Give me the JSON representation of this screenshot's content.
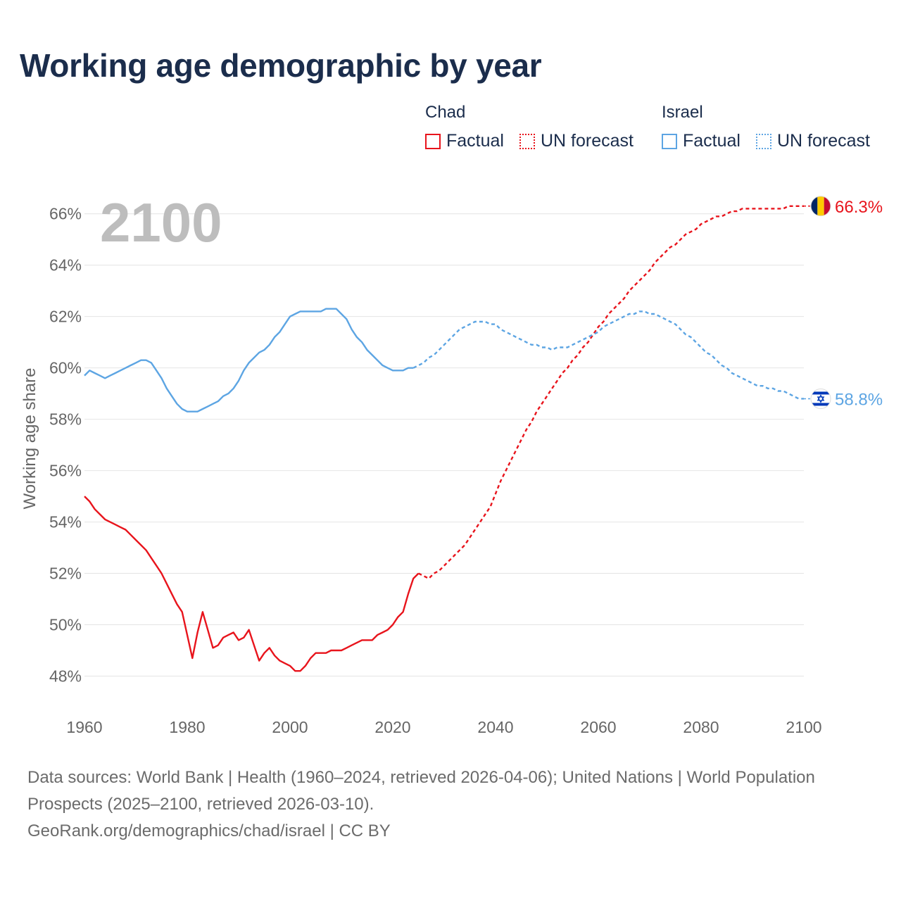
{
  "colors": {
    "chad": "#e8141c",
    "israel": "#5da5e3",
    "title": "#1b2d4c",
    "grid": "#e4e4e4",
    "muted": "#666666"
  },
  "legend": {
    "groups": [
      {
        "name": "Chad",
        "factual": "Factual",
        "forecast": "UN forecast"
      },
      {
        "name": "Israel",
        "factual": "Factual",
        "forecast": "UN forecast"
      }
    ]
  },
  "footer": {
    "sources": "Data sources: World Bank | Health (1960–2024, retrieved 2026-04-06); United Nations | World Population Prospects (2025–2100, retrieved 2026-03-10).",
    "credit": "GeoRank.org/demographics/chad/israel | CC BY"
  },
  "chart_data": {
    "type": "line",
    "title": "Working age demographic by year",
    "current_year": "2100",
    "xlabel": "",
    "ylabel": "Working age share",
    "xlim": [
      1960,
      2100
    ],
    "ylim": [
      47,
      67.5
    ],
    "x_ticks": [
      1960,
      1980,
      2000,
      2020,
      2040,
      2060,
      2080,
      2100
    ],
    "y_ticks": [
      48,
      50,
      52,
      54,
      56,
      58,
      60,
      62,
      64,
      66
    ],
    "y_tick_labels": [
      "48%",
      "50%",
      "52%",
      "54%",
      "56%",
      "58%",
      "60%",
      "62%",
      "64%",
      "66%"
    ],
    "series": [
      {
        "name": "Chad",
        "key": "chad",
        "end_label": "66.3%",
        "factual": [
          [
            1960,
            55.0
          ],
          [
            1961,
            54.8
          ],
          [
            1962,
            54.5
          ],
          [
            1963,
            54.3
          ],
          [
            1964,
            54.1
          ],
          [
            1965,
            54.0
          ],
          [
            1966,
            53.9
          ],
          [
            1967,
            53.8
          ],
          [
            1968,
            53.7
          ],
          [
            1969,
            53.5
          ],
          [
            1970,
            53.3
          ],
          [
            1971,
            53.1
          ],
          [
            1972,
            52.9
          ],
          [
            1973,
            52.6
          ],
          [
            1974,
            52.3
          ],
          [
            1975,
            52.0
          ],
          [
            1976,
            51.6
          ],
          [
            1977,
            51.2
          ],
          [
            1978,
            50.8
          ],
          [
            1979,
            50.5
          ],
          [
            1980,
            49.6
          ],
          [
            1981,
            48.7
          ],
          [
            1982,
            49.7
          ],
          [
            1983,
            50.5
          ],
          [
            1984,
            49.8
          ],
          [
            1985,
            49.1
          ],
          [
            1986,
            49.2
          ],
          [
            1987,
            49.5
          ],
          [
            1988,
            49.6
          ],
          [
            1989,
            49.7
          ],
          [
            1990,
            49.4
          ],
          [
            1991,
            49.5
          ],
          [
            1992,
            49.8
          ],
          [
            1993,
            49.2
          ],
          [
            1994,
            48.6
          ],
          [
            1995,
            48.9
          ],
          [
            1996,
            49.1
          ],
          [
            1997,
            48.8
          ],
          [
            1998,
            48.6
          ],
          [
            1999,
            48.5
          ],
          [
            2000,
            48.4
          ],
          [
            2001,
            48.2
          ],
          [
            2002,
            48.2
          ],
          [
            2003,
            48.4
          ],
          [
            2004,
            48.7
          ],
          [
            2005,
            48.9
          ],
          [
            2006,
            48.9
          ],
          [
            2007,
            48.9
          ],
          [
            2008,
            49.0
          ],
          [
            2009,
            49.0
          ],
          [
            2010,
            49.0
          ],
          [
            2011,
            49.1
          ],
          [
            2012,
            49.2
          ],
          [
            2013,
            49.3
          ],
          [
            2014,
            49.4
          ],
          [
            2015,
            49.4
          ],
          [
            2016,
            49.4
          ],
          [
            2017,
            49.6
          ],
          [
            2018,
            49.7
          ],
          [
            2019,
            49.8
          ],
          [
            2020,
            50.0
          ],
          [
            2021,
            50.3
          ],
          [
            2022,
            50.5
          ],
          [
            2023,
            51.2
          ],
          [
            2024,
            51.8
          ],
          [
            2025,
            52.0
          ]
        ],
        "forecast": [
          [
            2025,
            52.0
          ],
          [
            2026,
            51.9
          ],
          [
            2027,
            51.8
          ],
          [
            2028,
            52.0
          ],
          [
            2029,
            52.1
          ],
          [
            2030,
            52.3
          ],
          [
            2031,
            52.5
          ],
          [
            2032,
            52.7
          ],
          [
            2033,
            52.9
          ],
          [
            2034,
            53.1
          ],
          [
            2035,
            53.4
          ],
          [
            2036,
            53.7
          ],
          [
            2037,
            54.0
          ],
          [
            2038,
            54.3
          ],
          [
            2039,
            54.6
          ],
          [
            2040,
            55.1
          ],
          [
            2041,
            55.6
          ],
          [
            2042,
            56.0
          ],
          [
            2043,
            56.4
          ],
          [
            2044,
            56.8
          ],
          [
            2045,
            57.2
          ],
          [
            2046,
            57.6
          ],
          [
            2047,
            57.9
          ],
          [
            2048,
            58.3
          ],
          [
            2049,
            58.6
          ],
          [
            2050,
            58.9
          ],
          [
            2051,
            59.2
          ],
          [
            2052,
            59.5
          ],
          [
            2053,
            59.8
          ],
          [
            2054,
            60.0
          ],
          [
            2055,
            60.3
          ],
          [
            2056,
            60.5
          ],
          [
            2057,
            60.8
          ],
          [
            2058,
            61.0
          ],
          [
            2059,
            61.3
          ],
          [
            2060,
            61.6
          ],
          [
            2061,
            61.8
          ],
          [
            2062,
            62.1
          ],
          [
            2063,
            62.3
          ],
          [
            2064,
            62.5
          ],
          [
            2065,
            62.7
          ],
          [
            2066,
            63.0
          ],
          [
            2067,
            63.2
          ],
          [
            2068,
            63.4
          ],
          [
            2069,
            63.6
          ],
          [
            2070,
            63.8
          ],
          [
            2071,
            64.1
          ],
          [
            2072,
            64.3
          ],
          [
            2073,
            64.5
          ],
          [
            2074,
            64.7
          ],
          [
            2075,
            64.8
          ],
          [
            2076,
            65.0
          ],
          [
            2077,
            65.2
          ],
          [
            2078,
            65.3
          ],
          [
            2079,
            65.4
          ],
          [
            2080,
            65.6
          ],
          [
            2081,
            65.7
          ],
          [
            2082,
            65.8
          ],
          [
            2083,
            65.9
          ],
          [
            2084,
            65.9
          ],
          [
            2085,
            66.0
          ],
          [
            2086,
            66.1
          ],
          [
            2087,
            66.1
          ],
          [
            2088,
            66.2
          ],
          [
            2089,
            66.2
          ],
          [
            2090,
            66.2
          ],
          [
            2091,
            66.2
          ],
          [
            2092,
            66.2
          ],
          [
            2093,
            66.2
          ],
          [
            2094,
            66.2
          ],
          [
            2095,
            66.2
          ],
          [
            2096,
            66.2
          ],
          [
            2097,
            66.3
          ],
          [
            2098,
            66.3
          ],
          [
            2099,
            66.3
          ],
          [
            2100,
            66.3
          ]
        ]
      },
      {
        "name": "Israel",
        "key": "israel",
        "end_label": "58.8%",
        "factual": [
          [
            1960,
            59.7
          ],
          [
            1961,
            59.9
          ],
          [
            1962,
            59.8
          ],
          [
            1963,
            59.7
          ],
          [
            1964,
            59.6
          ],
          [
            1965,
            59.7
          ],
          [
            1966,
            59.8
          ],
          [
            1967,
            59.9
          ],
          [
            1968,
            60.0
          ],
          [
            1969,
            60.1
          ],
          [
            1970,
            60.2
          ],
          [
            1971,
            60.3
          ],
          [
            1972,
            60.3
          ],
          [
            1973,
            60.2
          ],
          [
            1974,
            59.9
          ],
          [
            1975,
            59.6
          ],
          [
            1976,
            59.2
          ],
          [
            1977,
            58.9
          ],
          [
            1978,
            58.6
          ],
          [
            1979,
            58.4
          ],
          [
            1980,
            58.3
          ],
          [
            1981,
            58.3
          ],
          [
            1982,
            58.3
          ],
          [
            1983,
            58.4
          ],
          [
            1984,
            58.5
          ],
          [
            1985,
            58.6
          ],
          [
            1986,
            58.7
          ],
          [
            1987,
            58.9
          ],
          [
            1988,
            59.0
          ],
          [
            1989,
            59.2
          ],
          [
            1990,
            59.5
          ],
          [
            1991,
            59.9
          ],
          [
            1992,
            60.2
          ],
          [
            1993,
            60.4
          ],
          [
            1994,
            60.6
          ],
          [
            1995,
            60.7
          ],
          [
            1996,
            60.9
          ],
          [
            1997,
            61.2
          ],
          [
            1998,
            61.4
          ],
          [
            1999,
            61.7
          ],
          [
            2000,
            62.0
          ],
          [
            2001,
            62.1
          ],
          [
            2002,
            62.2
          ],
          [
            2003,
            62.2
          ],
          [
            2004,
            62.2
          ],
          [
            2005,
            62.2
          ],
          [
            2006,
            62.2
          ],
          [
            2007,
            62.3
          ],
          [
            2008,
            62.3
          ],
          [
            2009,
            62.3
          ],
          [
            2010,
            62.1
          ],
          [
            2011,
            61.9
          ],
          [
            2012,
            61.5
          ],
          [
            2013,
            61.2
          ],
          [
            2014,
            61.0
          ],
          [
            2015,
            60.7
          ],
          [
            2016,
            60.5
          ],
          [
            2017,
            60.3
          ],
          [
            2018,
            60.1
          ],
          [
            2019,
            60.0
          ],
          [
            2020,
            59.9
          ],
          [
            2021,
            59.9
          ],
          [
            2022,
            59.9
          ],
          [
            2023,
            60.0
          ],
          [
            2024,
            60.0
          ]
        ],
        "forecast": [
          [
            2024,
            60.0
          ],
          [
            2025,
            60.1
          ],
          [
            2026,
            60.2
          ],
          [
            2027,
            60.4
          ],
          [
            2028,
            60.5
          ],
          [
            2029,
            60.7
          ],
          [
            2030,
            60.9
          ],
          [
            2031,
            61.1
          ],
          [
            2032,
            61.3
          ],
          [
            2033,
            61.5
          ],
          [
            2034,
            61.6
          ],
          [
            2035,
            61.7
          ],
          [
            2036,
            61.8
          ],
          [
            2037,
            61.8
          ],
          [
            2038,
            61.8
          ],
          [
            2039,
            61.7
          ],
          [
            2040,
            61.7
          ],
          [
            2041,
            61.5
          ],
          [
            2042,
            61.4
          ],
          [
            2043,
            61.3
          ],
          [
            2044,
            61.2
          ],
          [
            2045,
            61.1
          ],
          [
            2046,
            61.0
          ],
          [
            2047,
            60.9
          ],
          [
            2048,
            60.9
          ],
          [
            2049,
            60.8
          ],
          [
            2050,
            60.8
          ],
          [
            2051,
            60.7
          ],
          [
            2052,
            60.8
          ],
          [
            2053,
            60.8
          ],
          [
            2054,
            60.8
          ],
          [
            2055,
            60.9
          ],
          [
            2056,
            61.0
          ],
          [
            2057,
            61.1
          ],
          [
            2058,
            61.2
          ],
          [
            2059,
            61.3
          ],
          [
            2060,
            61.4
          ],
          [
            2061,
            61.6
          ],
          [
            2062,
            61.7
          ],
          [
            2063,
            61.8
          ],
          [
            2064,
            61.9
          ],
          [
            2065,
            62.0
          ],
          [
            2066,
            62.1
          ],
          [
            2067,
            62.1
          ],
          [
            2068,
            62.2
          ],
          [
            2069,
            62.2
          ],
          [
            2070,
            62.1
          ],
          [
            2071,
            62.1
          ],
          [
            2072,
            62.0
          ],
          [
            2073,
            61.9
          ],
          [
            2074,
            61.8
          ],
          [
            2075,
            61.7
          ],
          [
            2076,
            61.5
          ],
          [
            2077,
            61.3
          ],
          [
            2078,
            61.2
          ],
          [
            2079,
            61.0
          ],
          [
            2080,
            60.8
          ],
          [
            2081,
            60.6
          ],
          [
            2082,
            60.5
          ],
          [
            2083,
            60.3
          ],
          [
            2084,
            60.1
          ],
          [
            2085,
            60.0
          ],
          [
            2086,
            59.8
          ],
          [
            2087,
            59.7
          ],
          [
            2088,
            59.6
          ],
          [
            2089,
            59.5
          ],
          [
            2090,
            59.4
          ],
          [
            2091,
            59.3
          ],
          [
            2092,
            59.3
          ],
          [
            2093,
            59.2
          ],
          [
            2094,
            59.2
          ],
          [
            2095,
            59.1
          ],
          [
            2096,
            59.1
          ],
          [
            2097,
            59.0
          ],
          [
            2098,
            58.9
          ],
          [
            2099,
            58.8
          ],
          [
            2100,
            58.8
          ]
        ]
      }
    ]
  }
}
